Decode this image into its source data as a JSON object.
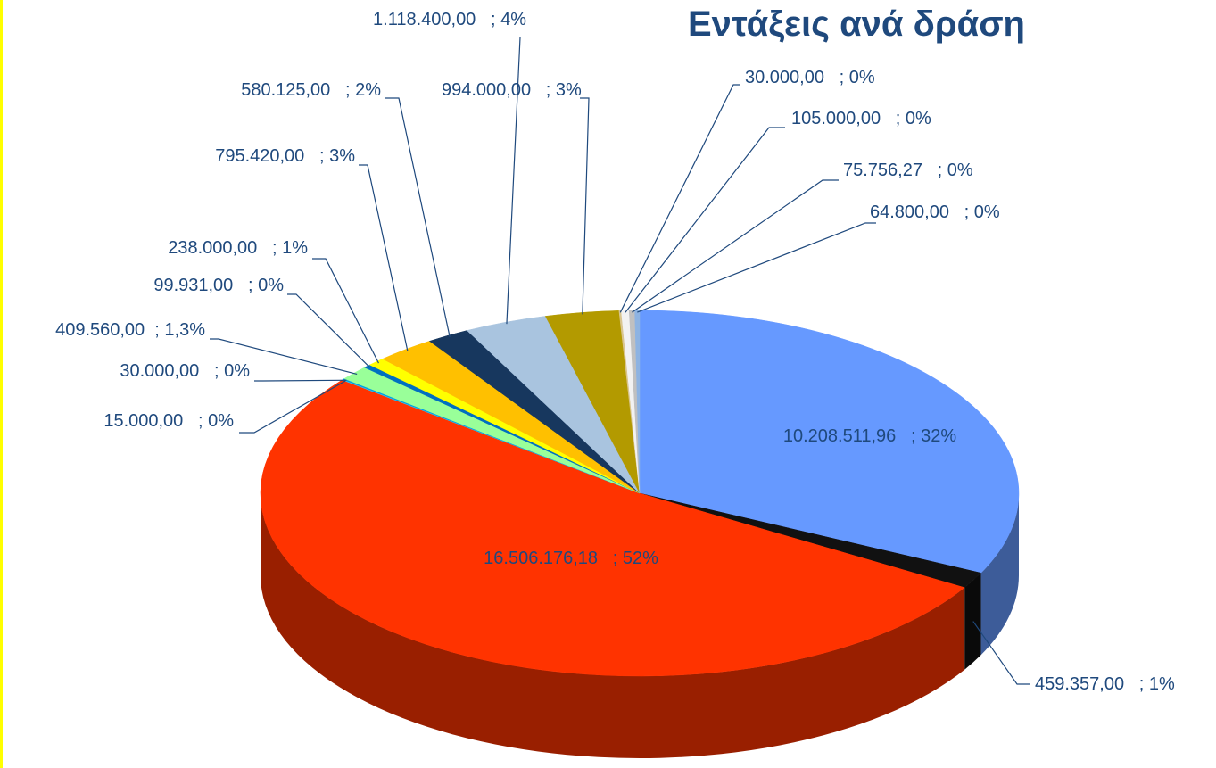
{
  "chart_data": {
    "type": "pie3d",
    "title": "Εντάξεις ανά δράση",
    "values": [
      10208511.96,
      459357,
      16506176.18,
      15000,
      30000,
      409560,
      99931,
      238000,
      795420,
      580125,
      1118400,
      994000,
      30000,
      105000,
      75756.27,
      64800
    ],
    "value_labels": [
      "10.208.511,96   ; 32%",
      "459.357,00   ; 1%",
      "16.506.176,18   ; 52%",
      "15.000,00   ; 0%",
      "30.000,00   ; 0%",
      "409.560,00  ; 1,3%",
      "99.931,00   ; 0%",
      "238.000,00   ; 1%",
      "795.420,00   ; 3%",
      "580.125,00   ; 2%",
      "1.118.400,00   ; 4%",
      "994.000,00   ; 3%",
      "30.000,00   ; 0%",
      "105.000,00   ; 0%",
      "75.756,27   ; 0%",
      "64.800,00   ; 0%"
    ],
    "colors": [
      "#6699ff",
      "#111111",
      "#ff3300",
      "#33ccff",
      "#00a0e0",
      "#99ff99",
      "#0070c0",
      "#ffff00",
      "#ffc000",
      "#17375e",
      "#a9c4df",
      "#b39a00",
      "#d9c58f",
      "#f2f2f2",
      "#c0c0c0",
      "#8db3e2"
    ]
  }
}
